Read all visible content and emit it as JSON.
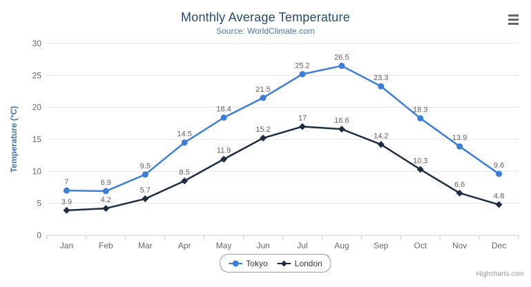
{
  "chart_data": {
    "type": "line",
    "title": "Monthly Average Temperature",
    "subtitle": "Source: WorldClimate.com",
    "categories": [
      "Jan",
      "Feb",
      "Mar",
      "Apr",
      "May",
      "Jun",
      "Jul",
      "Aug",
      "Sep",
      "Oct",
      "Nov",
      "Dec"
    ],
    "series": [
      {
        "name": "Tokyo",
        "marker": "circle",
        "color": "#3b7dd8",
        "values": [
          7.0,
          6.9,
          9.5,
          14.5,
          18.4,
          21.5,
          25.2,
          26.5,
          23.3,
          18.3,
          13.9,
          9.6
        ]
      },
      {
        "name": "London",
        "marker": "diamond",
        "color": "#1e2d42",
        "values": [
          3.9,
          4.2,
          5.7,
          8.5,
          11.9,
          15.2,
          17.0,
          16.6,
          14.2,
          10.3,
          6.6,
          4.8
        ]
      }
    ],
    "xlabel": "",
    "ylabel": "Temperature (°C)",
    "ylim": [
      0,
      30
    ],
    "ytick_interval": 5,
    "grid": true,
    "data_labels": true,
    "legend_position": "bottom-center"
  },
  "credits": "Highcharts.com",
  "menu_icon": "hamburger-export-menu",
  "colors": {
    "title": "#274b6d",
    "subtitle": "#4d759e",
    "axis_title": "#4572a7",
    "tick_label": "#666666",
    "grid_line": "#e6e6e6",
    "axis_line": "#c7cdd6",
    "data_label": "#606060",
    "legend_text": "#333333",
    "legend_border": "#999999",
    "credits": "#999999",
    "menu_icon": "#666666",
    "background": "#ffffff"
  }
}
